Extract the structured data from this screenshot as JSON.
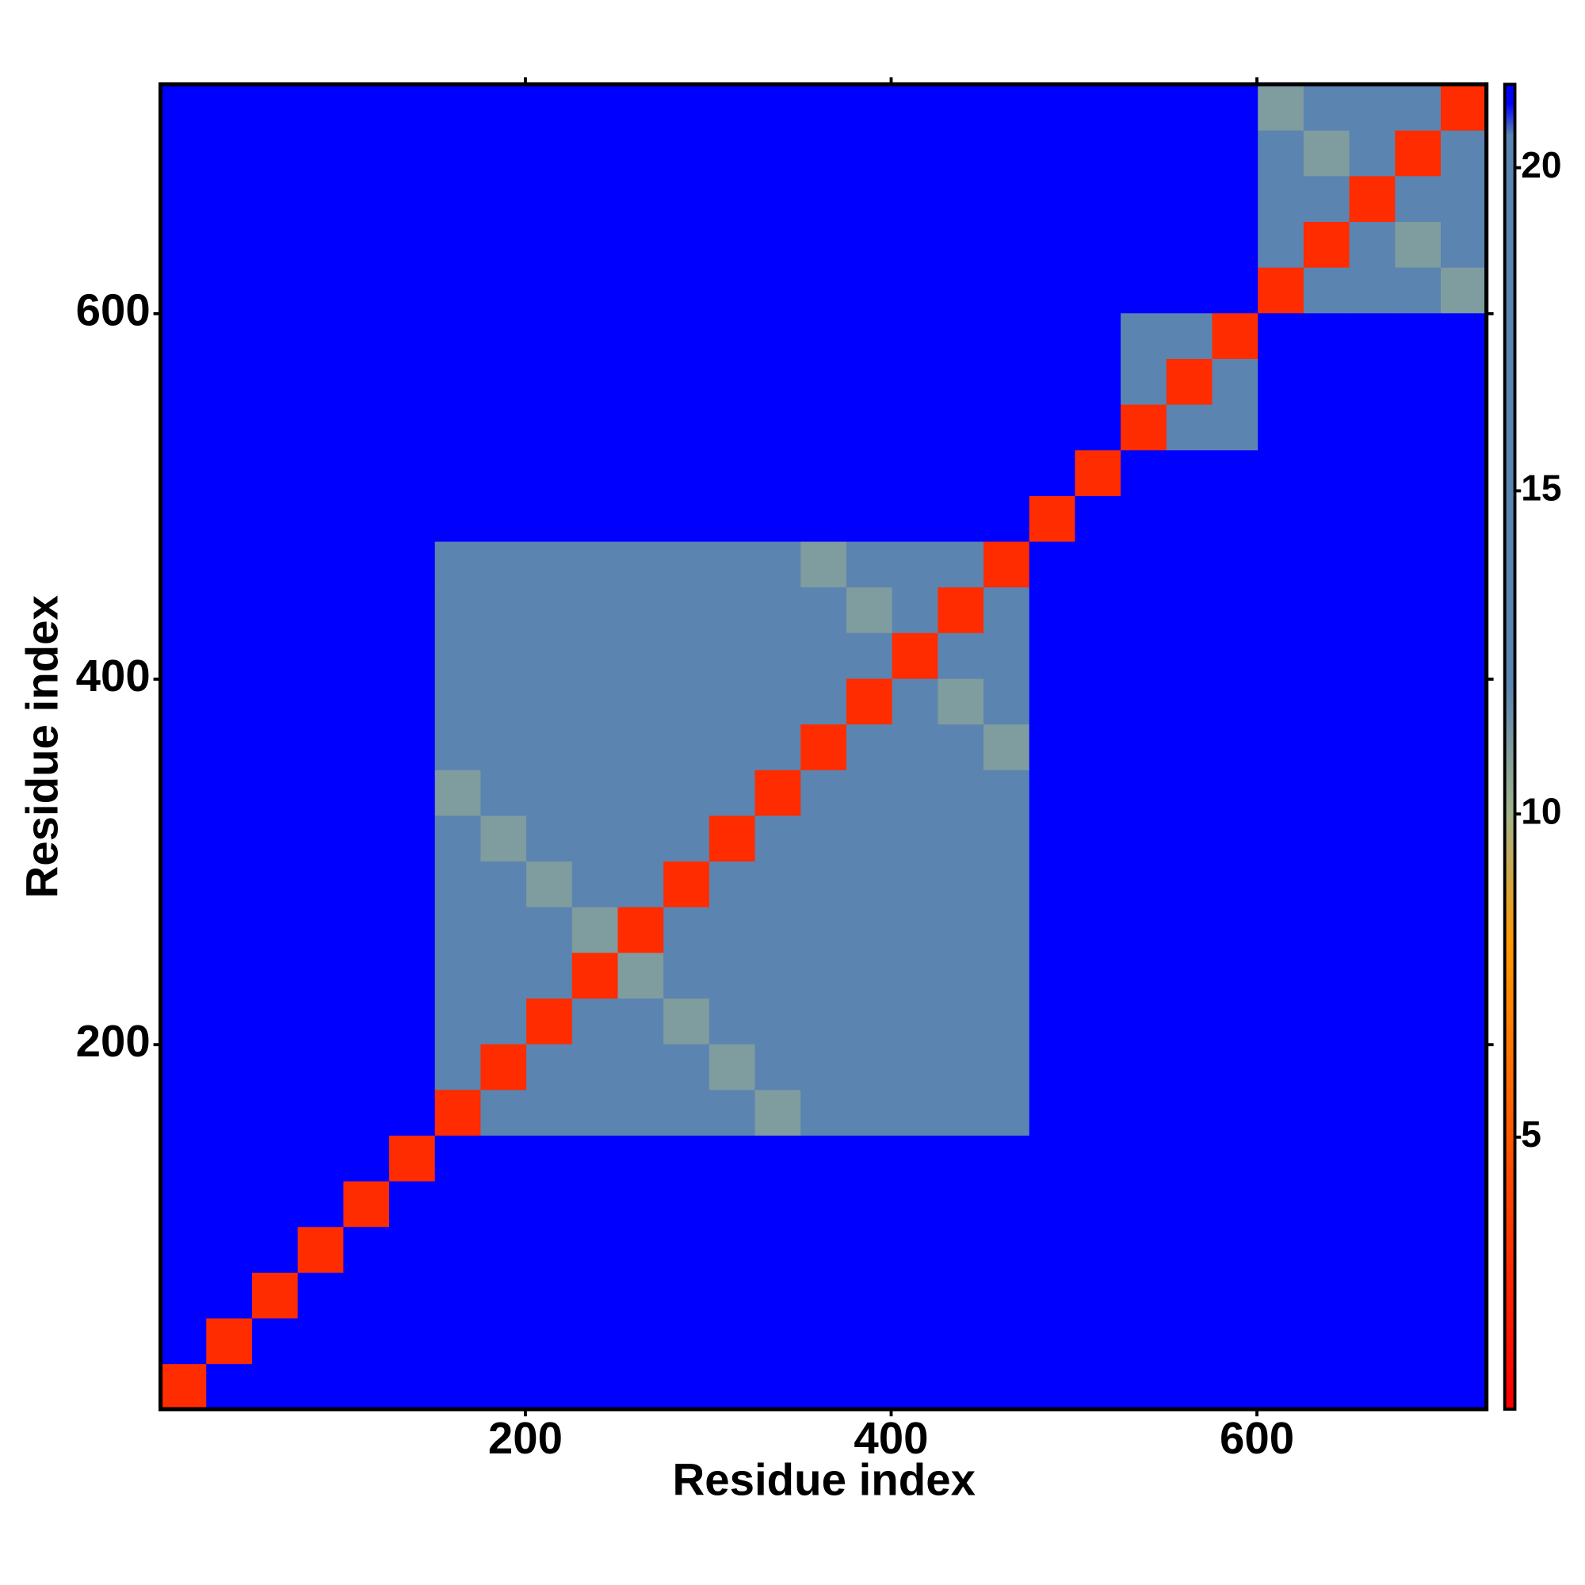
{
  "chart_data": {
    "type": "heatmap",
    "xlabel": "Residue index",
    "ylabel": "Residue index",
    "xlim": [
      0.5,
      725.5
    ],
    "ylim": [
      0.5,
      725.5
    ],
    "xticks": [
      200,
      400,
      600
    ],
    "yticks": [
      200,
      400,
      600
    ],
    "xbins": [
      0.5,
      25.5,
      50.5,
      75.5,
      100.5,
      125.5,
      150.5,
      175.5,
      200.5,
      225.5,
      250.5,
      275.5,
      300.5,
      325.5,
      350.5,
      375.5,
      400.5,
      425.5,
      450.5,
      475.5,
      500.5,
      525.5,
      550.5,
      575.5,
      600.5,
      625.5,
      650.5,
      675.5,
      700.5,
      725.5
    ],
    "ybins": [
      0.5,
      25.5,
      50.5,
      75.5,
      100.5,
      125.5,
      150.5,
      175.5,
      200.5,
      225.5,
      250.5,
      275.5,
      300.5,
      325.5,
      350.5,
      375.5,
      400.5,
      425.5,
      450.5,
      475.5,
      500.5,
      525.5,
      550.5,
      575.5,
      600.5,
      625.5,
      650.5,
      675.5,
      700.5,
      725.5
    ],
    "z": [
      [
        3,
        21,
        21,
        21,
        21,
        21,
        21,
        21,
        21,
        21,
        21,
        21,
        21,
        21,
        21,
        21,
        21,
        21,
        21,
        21,
        21,
        21,
        21,
        21,
        21,
        21,
        21,
        21,
        21
      ],
      [
        21,
        3,
        21,
        21,
        21,
        21,
        21,
        21,
        21,
        21,
        21,
        21,
        21,
        21,
        21,
        21,
        21,
        21,
        21,
        21,
        21,
        21,
        21,
        21,
        21,
        21,
        21,
        21,
        21
      ],
      [
        21,
        21,
        3,
        21,
        21,
        21,
        21,
        21,
        21,
        21,
        21,
        21,
        21,
        21,
        21,
        21,
        21,
        21,
        21,
        21,
        21,
        21,
        21,
        21,
        21,
        21,
        21,
        21,
        21
      ],
      [
        21,
        21,
        21,
        3,
        21,
        21,
        21,
        21,
        21,
        21,
        21,
        21,
        21,
        21,
        21,
        21,
        21,
        21,
        21,
        21,
        21,
        21,
        21,
        21,
        21,
        21,
        21,
        21,
        21
      ],
      [
        21,
        21,
        21,
        21,
        3,
        21,
        21,
        21,
        21,
        21,
        21,
        21,
        21,
        21,
        21,
        21,
        21,
        21,
        21,
        21,
        21,
        21,
        21,
        21,
        21,
        21,
        21,
        21,
        21
      ],
      [
        21,
        21,
        21,
        21,
        21,
        3,
        21,
        21,
        21,
        21,
        21,
        21,
        21,
        21,
        21,
        21,
        21,
        21,
        21,
        21,
        21,
        21,
        21,
        21,
        21,
        21,
        21,
        21,
        21
      ],
      [
        21,
        21,
        21,
        21,
        21,
        21,
        3,
        16,
        16,
        16,
        16,
        16,
        16,
        11,
        19,
        19,
        19,
        19,
        19,
        21,
        21,
        21,
        21,
        21,
        21,
        21,
        21,
        21,
        21
      ],
      [
        21,
        21,
        21,
        21,
        21,
        21,
        16,
        3,
        16,
        16,
        16,
        16,
        11,
        16,
        19,
        19,
        19,
        19,
        19,
        21,
        21,
        21,
        21,
        21,
        21,
        21,
        21,
        21,
        21
      ],
      [
        21,
        21,
        21,
        21,
        21,
        21,
        16,
        16,
        3,
        16,
        16,
        11,
        16,
        16,
        19,
        19,
        19,
        19,
        19,
        21,
        21,
        21,
        21,
        21,
        21,
        21,
        21,
        21,
        21
      ],
      [
        21,
        21,
        21,
        21,
        21,
        21,
        16,
        16,
        16,
        3,
        11,
        16,
        16,
        16,
        19,
        19,
        19,
        19,
        19,
        21,
        21,
        21,
        21,
        21,
        21,
        21,
        21,
        21,
        21
      ],
      [
        21,
        21,
        21,
        21,
        21,
        21,
        16,
        16,
        16,
        11,
        3,
        16,
        16,
        16,
        19,
        19,
        19,
        19,
        19,
        21,
        21,
        21,
        21,
        21,
        21,
        21,
        21,
        21,
        21
      ],
      [
        21,
        21,
        21,
        21,
        21,
        21,
        16,
        16,
        11,
        16,
        16,
        3,
        16,
        16,
        19,
        19,
        19,
        19,
        19,
        21,
        21,
        21,
        21,
        21,
        21,
        21,
        21,
        21,
        21
      ],
      [
        21,
        21,
        21,
        21,
        21,
        21,
        16,
        11,
        16,
        16,
        16,
        16,
        3,
        16,
        19,
        19,
        19,
        19,
        19,
        21,
        21,
        21,
        21,
        21,
        21,
        21,
        21,
        21,
        21
      ],
      [
        21,
        21,
        21,
        21,
        21,
        21,
        11,
        16,
        16,
        16,
        16,
        16,
        16,
        3,
        19,
        19,
        19,
        19,
        19,
        21,
        21,
        21,
        21,
        21,
        21,
        21,
        21,
        21,
        21
      ],
      [
        21,
        21,
        21,
        21,
        21,
        21,
        19,
        19,
        19,
        19,
        19,
        19,
        19,
        19,
        3,
        15,
        15,
        15,
        11,
        21,
        21,
        21,
        21,
        21,
        21,
        21,
        21,
        21,
        21
      ],
      [
        21,
        21,
        21,
        21,
        21,
        21,
        19,
        19,
        19,
        19,
        19,
        19,
        19,
        19,
        15,
        3,
        15,
        11,
        15,
        21,
        21,
        21,
        21,
        21,
        21,
        21,
        21,
        21,
        21
      ],
      [
        21,
        21,
        21,
        21,
        21,
        21,
        19,
        19,
        19,
        19,
        19,
        19,
        19,
        19,
        15,
        15,
        3,
        15,
        15,
        21,
        21,
        21,
        21,
        21,
        21,
        21,
        21,
        21,
        21
      ],
      [
        21,
        21,
        21,
        21,
        21,
        21,
        19,
        19,
        19,
        19,
        19,
        19,
        19,
        19,
        15,
        11,
        15,
        3,
        15,
        21,
        21,
        21,
        21,
        21,
        21,
        21,
        21,
        21,
        21
      ],
      [
        21,
        21,
        21,
        21,
        21,
        21,
        19,
        19,
        19,
        19,
        19,
        19,
        19,
        19,
        11,
        15,
        15,
        15,
        3,
        21,
        21,
        21,
        21,
        21,
        21,
        21,
        21,
        21,
        21
      ],
      [
        21,
        21,
        21,
        21,
        21,
        21,
        21,
        21,
        21,
        21,
        21,
        21,
        21,
        21,
        21,
        21,
        21,
        21,
        21,
        3,
        21,
        21,
        21,
        21,
        21,
        21,
        21,
        21,
        21
      ],
      [
        21,
        21,
        21,
        21,
        21,
        21,
        21,
        21,
        21,
        21,
        21,
        21,
        21,
        21,
        21,
        21,
        21,
        21,
        21,
        21,
        3,
        21,
        21,
        21,
        21,
        21,
        21,
        21,
        21
      ],
      [
        21,
        21,
        21,
        21,
        21,
        21,
        21,
        21,
        21,
        21,
        21,
        21,
        21,
        21,
        21,
        21,
        21,
        21,
        21,
        21,
        21,
        3,
        16,
        16,
        21,
        21,
        21,
        21,
        21
      ],
      [
        21,
        21,
        21,
        21,
        21,
        21,
        21,
        21,
        21,
        21,
        21,
        21,
        21,
        21,
        21,
        21,
        21,
        21,
        21,
        21,
        21,
        16,
        3,
        16,
        21,
        21,
        21,
        21,
        21
      ],
      [
        21,
        21,
        21,
        21,
        21,
        21,
        21,
        21,
        21,
        21,
        21,
        21,
        21,
        21,
        21,
        21,
        21,
        21,
        21,
        21,
        21,
        16,
        16,
        3,
        21,
        21,
        21,
        21,
        21
      ],
      [
        21,
        21,
        21,
        21,
        21,
        21,
        21,
        21,
        21,
        21,
        21,
        21,
        21,
        21,
        21,
        21,
        21,
        21,
        21,
        21,
        21,
        21,
        21,
        21,
        3,
        15,
        15,
        15,
        11
      ],
      [
        21,
        21,
        21,
        21,
        21,
        21,
        21,
        21,
        21,
        21,
        21,
        21,
        21,
        21,
        21,
        21,
        21,
        21,
        21,
        21,
        21,
        21,
        21,
        21,
        15,
        3,
        15,
        11,
        15
      ],
      [
        21,
        21,
        21,
        21,
        21,
        21,
        21,
        21,
        21,
        21,
        21,
        21,
        21,
        21,
        21,
        21,
        21,
        21,
        21,
        21,
        21,
        21,
        21,
        21,
        15,
        15,
        3,
        15,
        15
      ],
      [
        21,
        21,
        21,
        21,
        21,
        21,
        21,
        21,
        21,
        21,
        21,
        21,
        21,
        21,
        21,
        21,
        21,
        21,
        21,
        21,
        21,
        21,
        21,
        21,
        15,
        11,
        15,
        3,
        15
      ],
      [
        21,
        21,
        21,
        21,
        21,
        21,
        21,
        21,
        21,
        21,
        21,
        21,
        21,
        21,
        21,
        21,
        21,
        21,
        21,
        21,
        21,
        21,
        21,
        21,
        11,
        15,
        15,
        15,
        3
      ]
    ],
    "zlim": [
      0.79,
      21.29
    ],
    "zticks": [
      5,
      10,
      15,
      20
    ],
    "colorscale": [
      {
        "value": 1,
        "color": "#ff0000"
      },
      {
        "value": 8,
        "color": "#ff9900"
      },
      {
        "value": 10,
        "color": "#a3b48a"
      },
      {
        "value": 12,
        "color": "#5b84b1"
      },
      {
        "value": 20.5,
        "color": "#5b84b1"
      },
      {
        "value": 21,
        "color": "#0000ff"
      }
    ]
  }
}
